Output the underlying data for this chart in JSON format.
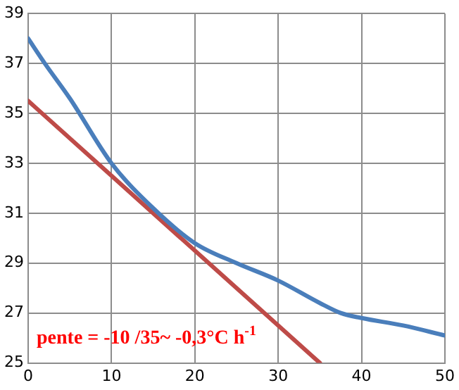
{
  "chart_data": {
    "type": "line",
    "series": [
      {
        "color": "#4a7ebb",
        "x": [
          0,
          2,
          5,
          10,
          15,
          20,
          25,
          30,
          35,
          37.5,
          40,
          45,
          50
        ],
        "values": [
          38.0,
          37.0,
          35.6,
          33.0,
          31.2,
          29.8,
          29.0,
          28.3,
          27.4,
          27.0,
          26.8,
          26.5,
          26.1
        ]
      },
      {
        "color": "#be4b48",
        "x": [
          0,
          35
        ],
        "values": [
          35.5,
          25
        ]
      }
    ],
    "xlim": [
      0,
      50
    ],
    "xticks": [
      0,
      10,
      20,
      30,
      40,
      50
    ],
    "ylim": [
      25,
      39
    ],
    "yticks": [
      25,
      27,
      29,
      31,
      33,
      35,
      37,
      39
    ],
    "grid": true,
    "legend": false,
    "marker": "none",
    "line_style": "solid",
    "annotations": [
      "pente = -10 /35~ -0,3°C h$^{-1}$"
    ]
  }
}
